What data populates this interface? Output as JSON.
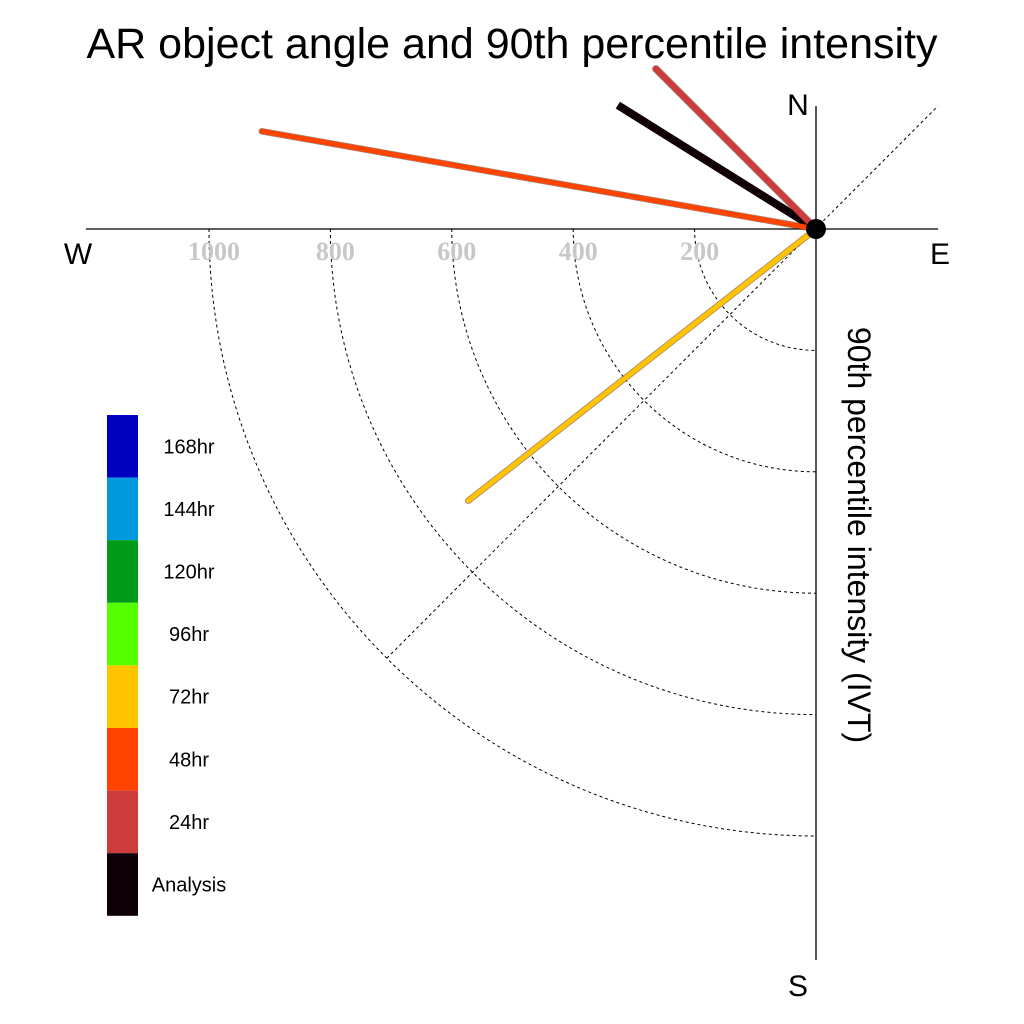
{
  "chart_data": {
    "type": "polar-vector",
    "title": "AR object angle and 90th percentile intensity",
    "ylabel": "90th percentile intensity (IVT)",
    "directions": {
      "north": "N",
      "south": "S",
      "east": "E",
      "west": "W"
    },
    "radial_ticks": [
      {
        "value": 200,
        "label": "200"
      },
      {
        "value": 400,
        "label": "400"
      },
      {
        "value": 600,
        "label": "600"
      },
      {
        "value": 800,
        "label": "800"
      },
      {
        "value": 1000,
        "label": "1000"
      }
    ],
    "rmax": 1000,
    "grid": true,
    "legend_position": "left",
    "legend": [
      {
        "label": "168hr",
        "color": "#0000c0"
      },
      {
        "label": "144hr",
        "color": "#0099dd"
      },
      {
        "label": "120hr",
        "color": "#009a1a"
      },
      {
        "label": "96hr",
        "color": "#55ff00"
      },
      {
        "label": "72hr",
        "color": "#ffc400"
      },
      {
        "label": "48hr",
        "color": "#ff4400"
      },
      {
        "label": "24hr",
        "color": "#cc3c3c"
      },
      {
        "label": "Analysis",
        "color": "#0f0008"
      }
    ],
    "series": [
      {
        "name": "Analysis",
        "color": "#0f0008",
        "angle_deg": 302,
        "magnitude": 385,
        "width": 8
      },
      {
        "name": "24hr",
        "color": "#cc3c3c",
        "angle_deg": 315,
        "magnitude": 373,
        "width": 6
      },
      {
        "name": "48hr",
        "color": "#ff4400",
        "angle_deg": 280,
        "magnitude": 927,
        "width": 5
      },
      {
        "name": "72hr",
        "color": "#ffc400",
        "angle_deg": 232,
        "magnitude": 727,
        "width": 5
      }
    ]
  }
}
